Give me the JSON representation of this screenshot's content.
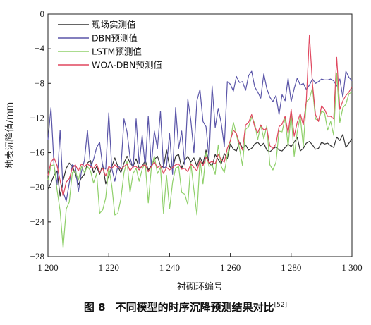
{
  "chart_data": {
    "type": "line",
    "ylabel": "地表沉降值/mm",
    "xlabel": "衬砌环编号",
    "xlim": [
      1200,
      1300
    ],
    "ylim": [
      -28,
      0
    ],
    "x_ticks": [
      1200,
      1220,
      1240,
      1260,
      1280,
      1300
    ],
    "x_tick_labels": [
      "1 200",
      "1 220",
      "1 240",
      "1 260",
      "1 280",
      "1 300"
    ],
    "y_ticks": [
      0,
      -4,
      -8,
      -12,
      -16,
      -20,
      -24,
      -28
    ],
    "legend_position": "top-left",
    "x": [
      1200,
      1201,
      1202,
      1203,
      1204,
      1205,
      1206,
      1207,
      1208,
      1209,
      1210,
      1211,
      1212,
      1213,
      1214,
      1215,
      1216,
      1217,
      1218,
      1219,
      1220,
      1221,
      1222,
      1223,
      1224,
      1225,
      1226,
      1227,
      1228,
      1229,
      1230,
      1231,
      1232,
      1233,
      1234,
      1235,
      1236,
      1237,
      1238,
      1239,
      1240,
      1241,
      1242,
      1243,
      1244,
      1245,
      1246,
      1247,
      1248,
      1249,
      1250,
      1251,
      1252,
      1253,
      1254,
      1255,
      1256,
      1257,
      1258,
      1259,
      1260,
      1261,
      1262,
      1263,
      1264,
      1265,
      1266,
      1267,
      1268,
      1269,
      1270,
      1271,
      1272,
      1273,
      1274,
      1275,
      1276,
      1277,
      1278,
      1279,
      1280,
      1281,
      1282,
      1283,
      1284,
      1285,
      1286,
      1287,
      1288,
      1289,
      1290,
      1291,
      1292,
      1293,
      1294,
      1295,
      1296,
      1297,
      1298,
      1299,
      1300
    ],
    "series": [
      {
        "name": "现场实测值",
        "color": "#333333",
        "values": [
          -20.2,
          -19.5,
          -18.6,
          -18.1,
          -21.0,
          -19.2,
          -17.8,
          -17.2,
          -17.6,
          -18.4,
          -19.7,
          -18.9,
          -18.5,
          -17.2,
          -16.9,
          -18.3,
          -17.6,
          -18.5,
          -17.4,
          -19.6,
          -18.7,
          -17.6,
          -16.6,
          -17.6,
          -18.3,
          -17.2,
          -16.4,
          -17.2,
          -17.6,
          -16.7,
          -17.8,
          -17.6,
          -16.9,
          -18.0,
          -17.5,
          -16.8,
          -16.4,
          -17.5,
          -17.7,
          -15.7,
          -17.6,
          -17.9,
          -16.4,
          -16.2,
          -17.8,
          -16.9,
          -16.4,
          -17.1,
          -16.6,
          -17.6,
          -16.5,
          -17.3,
          -15.7,
          -17.1,
          -17.6,
          -16.2,
          -16.8,
          -17.3,
          -16.1,
          -16.7,
          -15.0,
          -15.6,
          -15.8,
          -14.8,
          -15.5,
          -15.1,
          -15.7,
          -15.5,
          -15.0,
          -14.8,
          -15.2,
          -14.9,
          -15.7,
          -15.9,
          -15.6,
          -15.3,
          -15.7,
          -15.8,
          -15.4,
          -15.0,
          -15.3,
          -14.8,
          -14.2,
          -15.8,
          -15.5,
          -14.9,
          -14.7,
          -15.1,
          -15.6,
          -15.5,
          -14.8,
          -15.0,
          -14.9,
          -15.2,
          -15.4,
          -14.2,
          -14.6,
          -13.9,
          -15.4,
          -14.9,
          -14.4
        ]
      },
      {
        "name": "DBN预测值",
        "color": "#5a55a8",
        "values": [
          -14.5,
          -10.8,
          -17.5,
          -19.7,
          -13.4,
          -20.5,
          -21.6,
          -19.5,
          -17.4,
          -17.6,
          -20.5,
          -18.2,
          -16.9,
          -13.4,
          -17.7,
          -16.8,
          -15.4,
          -14.8,
          -17.6,
          -17.9,
          -11.4,
          -17.8,
          -19.3,
          -17.5,
          -17.8,
          -12.1,
          -13.6,
          -16.6,
          -17.8,
          -12.1,
          -17.3,
          -14.0,
          -17.7,
          -11.8,
          -17.6,
          -13.5,
          -15.5,
          -11.2,
          -17.8,
          -17.6,
          -13.8,
          -18.5,
          -10.8,
          -15.5,
          -13.5,
          -17.4,
          -9.8,
          -12.3,
          -16.0,
          -10.0,
          -8.7,
          -12.4,
          -13.0,
          -16.7,
          -8.3,
          -13.1,
          -10.9,
          -12.6,
          -15.3,
          -7.8,
          -8.1,
          -8.9,
          -7.2,
          -7.9,
          -7.8,
          -8.8,
          -7.1,
          -6.6,
          -8.4,
          -9.0,
          -9.7,
          -6.9,
          -8.6,
          -9.6,
          -10.1,
          -9.4,
          -11.6,
          -9.3,
          -10.0,
          -7.4,
          -10.1,
          -8.6,
          -7.4,
          -8.2,
          -8.0,
          -8.7,
          -8.2,
          -7.5,
          -8.0,
          -7.8,
          -7.5,
          -7.6,
          -7.6,
          -7.5,
          -7.7,
          -8.3,
          -7.5,
          -9.6,
          -6.6,
          -7.3,
          -7.7
        ]
      },
      {
        "name": "LSTM预测值",
        "color": "#8fd06a",
        "values": [
          -19.2,
          -17.5,
          -17.4,
          -20.3,
          -22.7,
          -27.0,
          -22.5,
          -21.7,
          -18.3,
          -18.1,
          -19.2,
          -17.6,
          -18.3,
          -17.6,
          -18.1,
          -19.5,
          -18.4,
          -23.0,
          -22.6,
          -21.2,
          -17.7,
          -19.8,
          -23.2,
          -23.0,
          -21.3,
          -18.3,
          -17.0,
          -20.6,
          -18.4,
          -17.8,
          -19.3,
          -17.9,
          -17.2,
          -21.8,
          -17.8,
          -16.4,
          -18.4,
          -17.7,
          -23.0,
          -18.6,
          -22.5,
          -19.4,
          -17.8,
          -17.6,
          -20.6,
          -20.8,
          -22.0,
          -17.2,
          -20.3,
          -23.2,
          -16.8,
          -19.6,
          -16.0,
          -17.6,
          -17.4,
          -18.5,
          -15.1,
          -17.6,
          -18.3,
          -16.3,
          -14.6,
          -12.5,
          -13.9,
          -15.5,
          -17.5,
          -13.3,
          -13.0,
          -11.9,
          -12.6,
          -14.5,
          -12.8,
          -14.4,
          -12.9,
          -17.4,
          -18.0,
          -17.1,
          -13.5,
          -13.6,
          -12.0,
          -15.3,
          -11.5,
          -16.4,
          -13.6,
          -11.8,
          -15.3,
          -10.1,
          -9.8,
          -8.5,
          -12.1,
          -12.3,
          -11.2,
          -11.4,
          -13.4,
          -12.4,
          -14.0,
          -6.8,
          -12.5,
          -10.8,
          -10.4,
          -9.2,
          -9.0
        ]
      },
      {
        "name": "WOA-DBN预测值",
        "color": "#e0475f",
        "values": [
          -18.6,
          -17.1,
          -16.6,
          -17.5,
          -19.2,
          -21.0,
          -19.4,
          -19.0,
          -17.8,
          -17.4,
          -18.1,
          -17.3,
          -17.6,
          -17.3,
          -17.6,
          -17.8,
          -17.3,
          -18.3,
          -17.8,
          -18.7,
          -17.6,
          -17.8,
          -17.4,
          -17.7,
          -17.9,
          -17.6,
          -17.3,
          -18.1,
          -17.6,
          -17.6,
          -18.0,
          -17.5,
          -17.4,
          -18.2,
          -17.6,
          -17.1,
          -17.7,
          -17.5,
          -18.4,
          -17.7,
          -18.0,
          -17.7,
          -17.4,
          -17.3,
          -17.9,
          -17.8,
          -18.2,
          -17.3,
          -17.7,
          -18.1,
          -16.9,
          -17.5,
          -16.5,
          -17.2,
          -17.0,
          -17.3,
          -16.2,
          -16.8,
          -17.1,
          -15.5,
          -14.6,
          -13.4,
          -13.8,
          -14.9,
          -15.7,
          -12.8,
          -12.5,
          -11.6,
          -13.0,
          -13.7,
          -12.8,
          -13.4,
          -13.2,
          -15.2,
          -15.5,
          -15.0,
          -13.0,
          -12.7,
          -11.8,
          -13.8,
          -11.0,
          -14.1,
          -12.5,
          -11.5,
          -12.8,
          -10.0,
          -2.4,
          -8.0,
          -11.6,
          -12.4,
          -10.6,
          -11.0,
          -11.8,
          -11.8,
          -12.1,
          -5.0,
          -11.0,
          -10.0,
          -9.4,
          -9.0,
          -8.4
        ]
      }
    ]
  },
  "caption": {
    "number": "图 8",
    "text": "不同模型的时序沉降预测结果对比",
    "ref": "[52]"
  }
}
